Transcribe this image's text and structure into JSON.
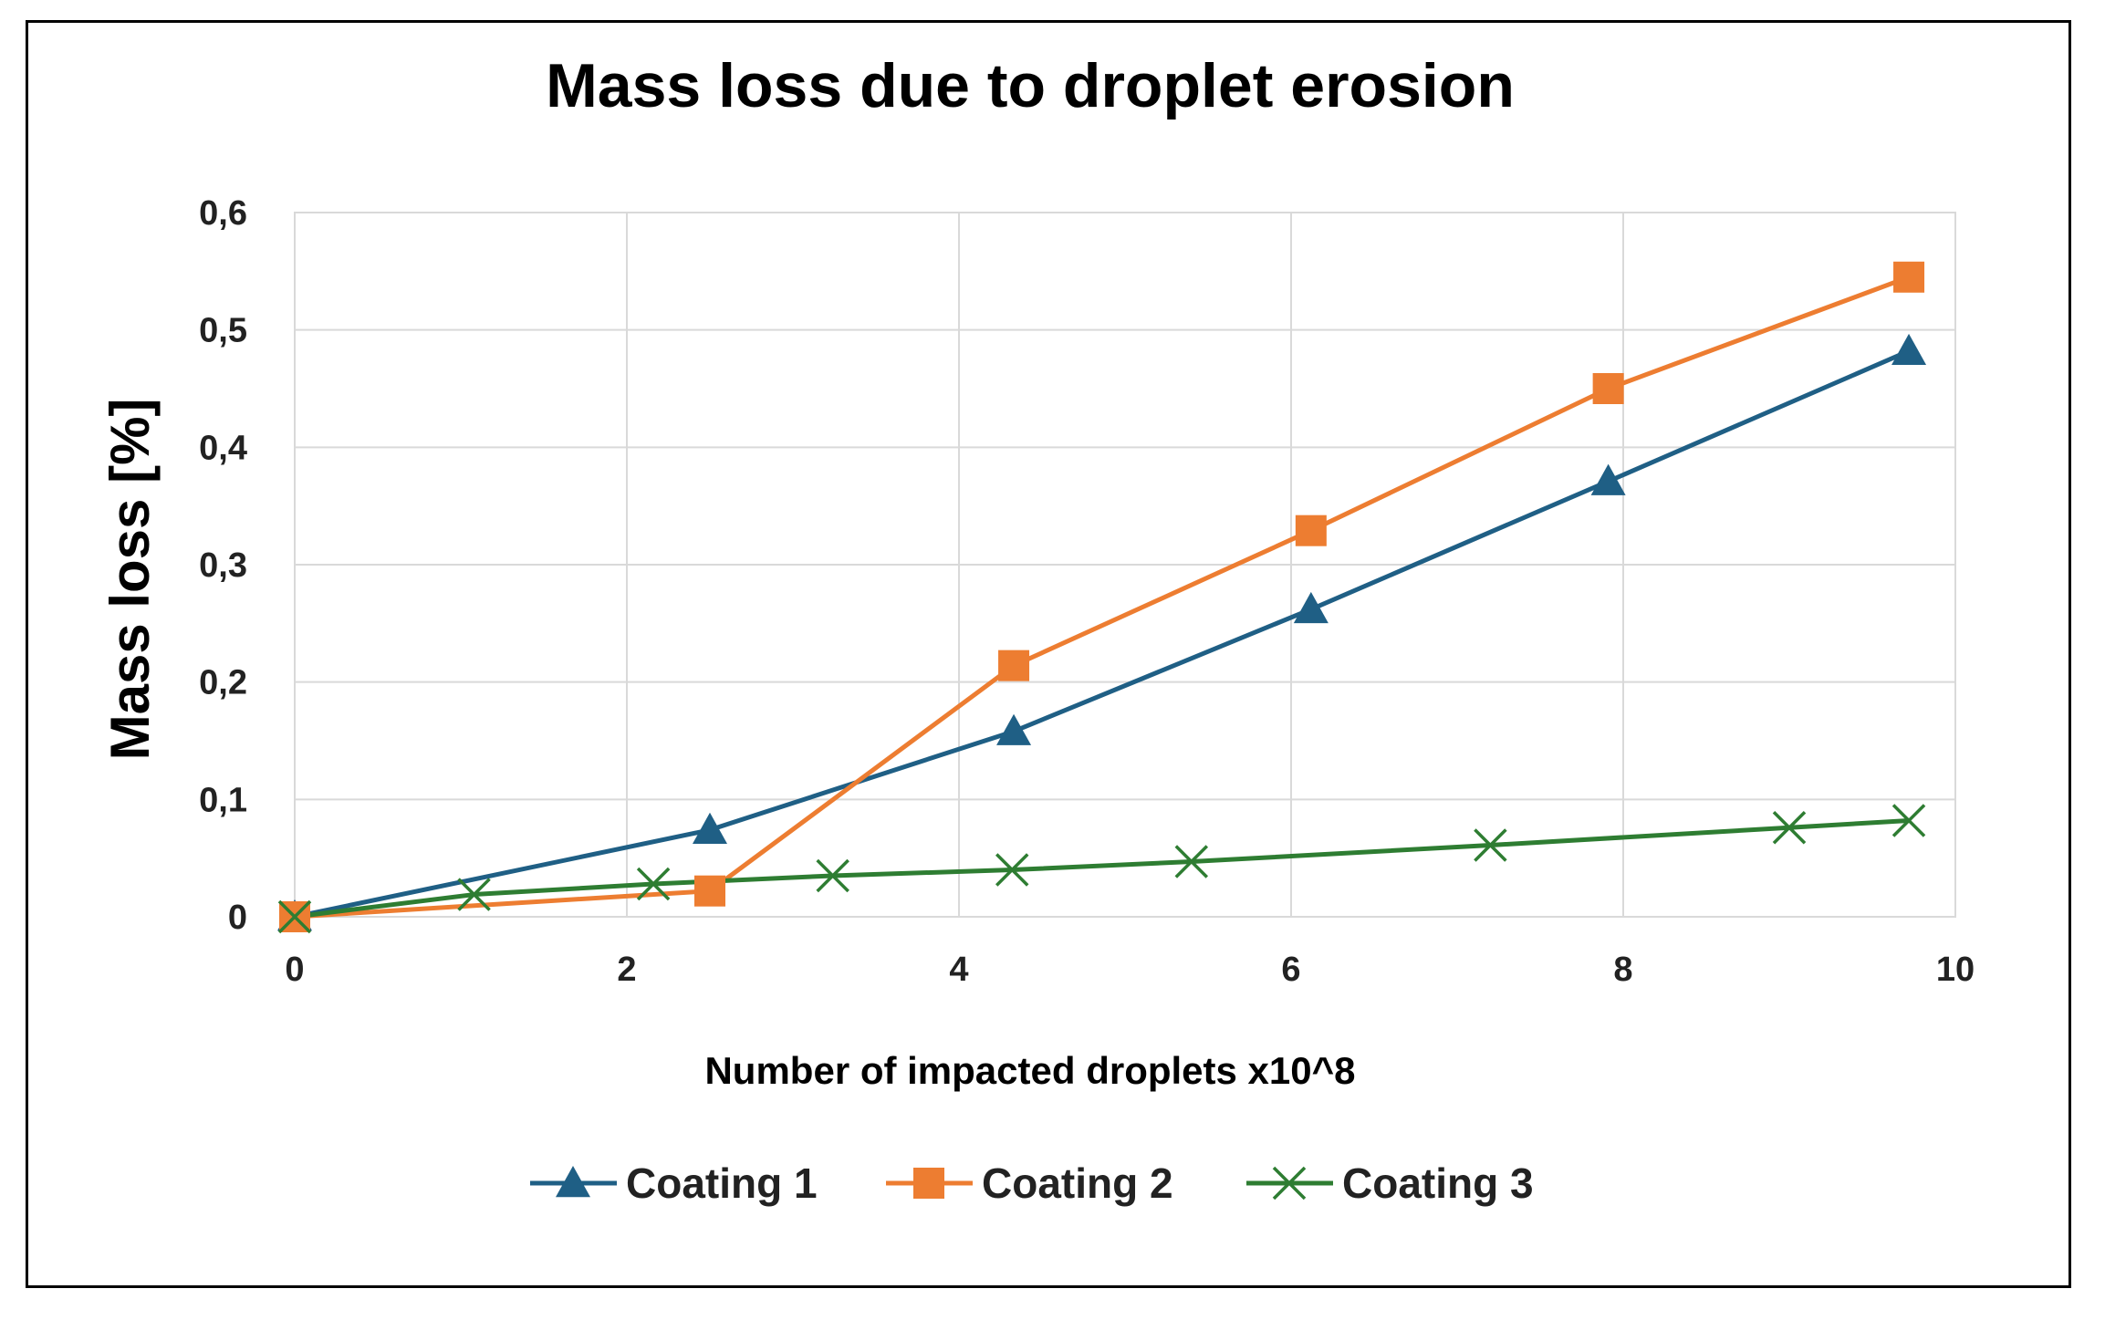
{
  "chart_data": {
    "type": "line",
    "title": "Mass loss due to droplet erosion",
    "xlabel": "Number of impacted droplets x10^8",
    "ylabel": "Mass loss [%]",
    "xlim": [
      0,
      10
    ],
    "ylim": [
      0,
      0.6
    ],
    "x_ticks": [
      0,
      2,
      4,
      6,
      8,
      10
    ],
    "x_tick_labels": [
      "0",
      "2",
      "4",
      "6",
      "8",
      "10"
    ],
    "y_ticks": [
      0,
      0.1,
      0.2,
      0.3,
      0.4,
      0.5,
      0.6
    ],
    "y_tick_labels": [
      "0",
      "0,1",
      "0,2",
      "0,3",
      "0,4",
      "0,5",
      "0,6"
    ],
    "grid": true,
    "legend_position": "bottom",
    "series": [
      {
        "name": "Coating 1",
        "color": "#1f5f85",
        "marker": "triangle",
        "x": [
          0,
          2.5,
          4.33,
          6.12,
          7.91,
          9.72
        ],
        "y": [
          0,
          0.074,
          0.158,
          0.262,
          0.371,
          0.482
        ]
      },
      {
        "name": "Coating 2",
        "color": "#ed7d31",
        "marker": "square",
        "x": [
          0,
          2.5,
          4.33,
          6.12,
          7.91,
          9.72
        ],
        "y": [
          0,
          0.022,
          0.214,
          0.329,
          0.45,
          0.545
        ]
      },
      {
        "name": "Coating 3",
        "color": "#2e7d32",
        "marker": "x",
        "x": [
          0,
          1.08,
          2.16,
          3.24,
          4.32,
          5.4,
          7.2,
          9.0,
          9.72
        ],
        "y": [
          0,
          0.019,
          0.028,
          0.035,
          0.04,
          0.047,
          0.061,
          0.076,
          0.082
        ]
      }
    ]
  }
}
